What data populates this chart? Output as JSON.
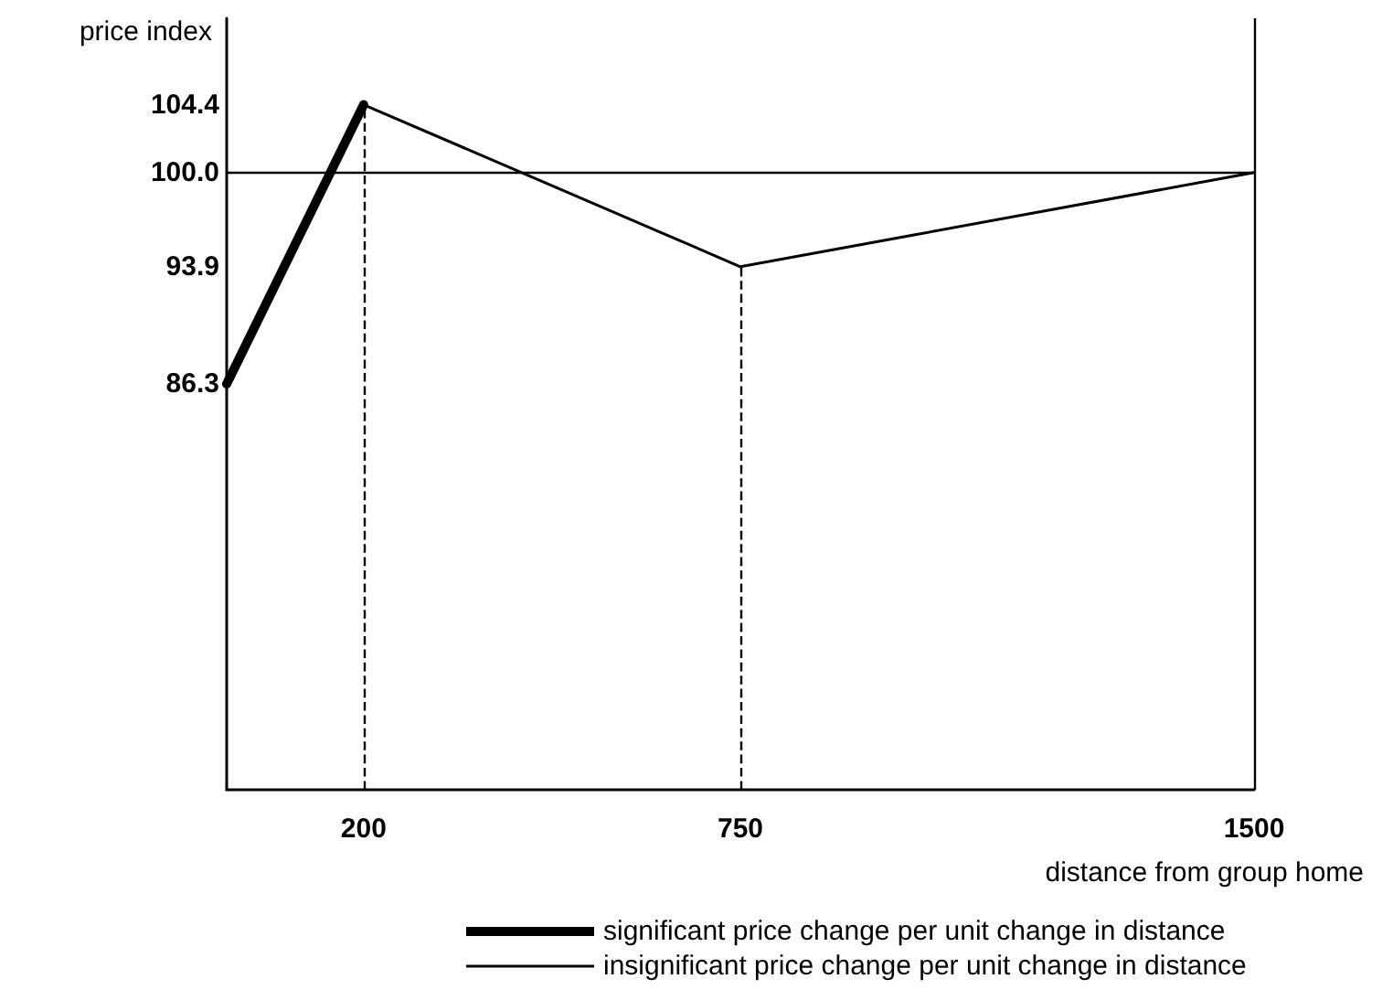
{
  "chart_data": {
    "type": "line",
    "ylabel": "price index",
    "xlabel": "distance from group home",
    "xlim": [
      0,
      1500
    ],
    "xticks": [
      200,
      750,
      1500
    ],
    "ylim": [
      60,
      110
    ],
    "yticks": [
      86.3,
      93.9,
      {
        "value": 100,
        "label": "100.0"
      },
      104.4
    ],
    "series": [
      {
        "name": "significant price change per unit change in distance",
        "color": "#000000",
        "x": [
          0,
          200
        ],
        "values": [
          86.3,
          104.4
        ]
      },
      {
        "name": "insignificant price change per unit change in distance",
        "color": "#000000",
        "x": [
          200,
          750,
          1500
        ],
        "values": [
          104.4,
          93.9,
          100
        ]
      }
    ],
    "ref_lines": [
      {
        "axis": "y",
        "value": 100,
        "line_style": "solid"
      },
      {
        "axis": "x",
        "value": 200,
        "line_style": "dashed"
      },
      {
        "axis": "x",
        "value": 750,
        "line_style": "dashed"
      },
      {
        "axis": "x",
        "value": 1500,
        "line_style": "solid"
      }
    ],
    "legend": "bottom",
    "grid": false,
    "marker": "none",
    "line_style": "solid"
  }
}
